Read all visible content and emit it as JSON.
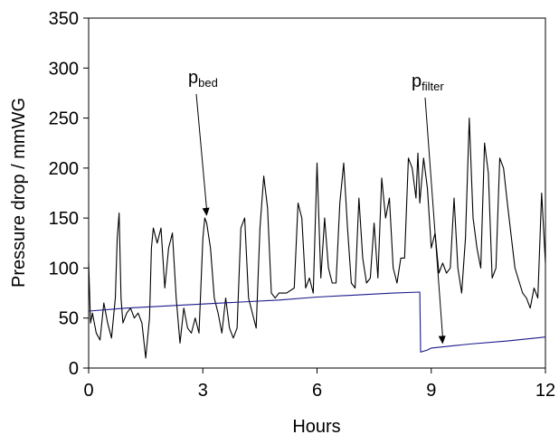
{
  "chart_data": {
    "type": "line",
    "title": "",
    "xlabel": "Hours",
    "ylabel": "Pressure drop / mmWG",
    "xlim": [
      0,
      12
    ],
    "ylim": [
      0,
      350
    ],
    "x_ticks": [
      0,
      3,
      6,
      9,
      12
    ],
    "x_tick_labels": [
      "0",
      "3",
      "6",
      "9",
      "12"
    ],
    "y_ticks": [
      0,
      50,
      100,
      150,
      200,
      250,
      300,
      350
    ],
    "y_tick_labels": [
      "0",
      "50",
      "100",
      "150",
      "200",
      "250",
      "300",
      "350"
    ],
    "grid": false,
    "legend": "none",
    "series": [
      {
        "color": "#000000",
        "x": [
          0.0,
          0.05,
          0.1,
          0.2,
          0.3,
          0.4,
          0.5,
          0.6,
          0.7,
          0.75,
          0.8,
          0.85,
          0.9,
          1.0,
          1.1,
          1.2,
          1.3,
          1.4,
          1.5,
          1.6,
          1.65,
          1.7,
          1.8,
          1.9,
          2.0,
          2.1,
          2.2,
          2.3,
          2.4,
          2.5,
          2.6,
          2.7,
          2.8,
          2.9,
          3.0,
          3.05,
          3.1,
          3.2,
          3.3,
          3.4,
          3.5,
          3.6,
          3.7,
          3.8,
          3.9,
          4.0,
          4.1,
          4.2,
          4.3,
          4.4,
          4.5,
          4.6,
          4.7,
          4.8,
          4.9,
          5.0,
          5.2,
          5.4,
          5.5,
          5.6,
          5.7,
          5.8,
          5.9,
          6.0,
          6.1,
          6.2,
          6.3,
          6.4,
          6.5,
          6.6,
          6.7,
          6.8,
          6.9,
          7.0,
          7.1,
          7.2,
          7.3,
          7.4,
          7.5,
          7.6,
          7.7,
          7.8,
          7.9,
          8.0,
          8.1,
          8.2,
          8.3,
          8.4,
          8.5,
          8.6,
          8.65,
          8.7,
          8.8,
          8.9,
          9.0,
          9.1,
          9.2,
          9.3,
          9.4,
          9.5,
          9.6,
          9.7,
          9.8,
          9.9,
          10.0,
          10.1,
          10.2,
          10.3,
          10.4,
          10.5,
          10.6,
          10.7,
          10.8,
          10.9,
          11.0,
          11.2,
          11.4,
          11.5,
          11.6,
          11.7,
          11.8,
          11.9,
          12.0
        ],
        "values": [
          105,
          45,
          55,
          35,
          28,
          65,
          45,
          30,
          70,
          130,
          155,
          70,
          45,
          55,
          60,
          50,
          55,
          45,
          10,
          50,
          120,
          140,
          125,
          140,
          80,
          120,
          135,
          70,
          25,
          60,
          40,
          35,
          50,
          35,
          130,
          150,
          145,
          120,
          70,
          55,
          35,
          70,
          40,
          30,
          40,
          140,
          150,
          70,
          55,
          40,
          140,
          192,
          160,
          75,
          70,
          75,
          75,
          80,
          165,
          150,
          80,
          90,
          75,
          205,
          90,
          150,
          100,
          85,
          85,
          165,
          205,
          140,
          85,
          80,
          170,
          110,
          85,
          90,
          145,
          90,
          190,
          150,
          170,
          100,
          85,
          110,
          110,
          210,
          200,
          170,
          215,
          165,
          210,
          180,
          120,
          135,
          95,
          105,
          95,
          100,
          170,
          100,
          75,
          130,
          250,
          150,
          120,
          100,
          225,
          195,
          90,
          100,
          210,
          200,
          165,
          100,
          75,
          70,
          60,
          80,
          70,
          175,
          105
        ]
      },
      {
        "color": "#1a1a8c",
        "x": [
          0.0,
          1.0,
          2.0,
          3.0,
          4.0,
          5.0,
          6.0,
          7.0,
          8.0,
          8.7,
          8.72,
          8.9,
          9.0,
          9.5,
          10.0,
          11.0,
          12.0
        ],
        "values": [
          57,
          60,
          62,
          64,
          66,
          68,
          71,
          73,
          75,
          76,
          16,
          18,
          20,
          22,
          24,
          27,
          31
        ]
      }
    ],
    "annotations": [
      {
        "text_main": "p",
        "text_sub": "bed",
        "target_x": 3.1,
        "target_y": 152
      },
      {
        "text_main": "p",
        "text_sub": "filter",
        "target_x": 9.3,
        "target_y": 24
      }
    ]
  }
}
